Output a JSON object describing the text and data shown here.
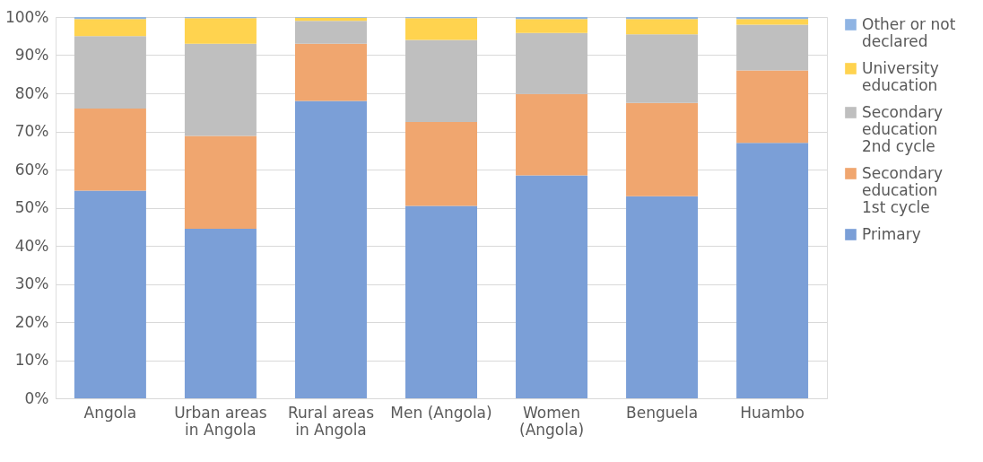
{
  "chart_data": {
    "type": "bar",
    "stacked": true,
    "categories": [
      "Angola",
      "Urban areas in Angola",
      "Rural areas in Angola",
      "Men (Angola)",
      "Women (Angola)",
      "Benguela",
      "Huambo"
    ],
    "series": [
      {
        "name": "Primary",
        "color": "#7b9fd7",
        "values": [
          54.5,
          44.5,
          78,
          50.5,
          58.5,
          53,
          67
        ]
      },
      {
        "name": "Secondary education 1st cycle",
        "color": "#f0a66f",
        "values": [
          21.5,
          24.3,
          15,
          22,
          21.3,
          24.5,
          19
        ]
      },
      {
        "name": "Secondary education 2nd cycle",
        "color": "#bfbfbf",
        "values": [
          19,
          24.2,
          6,
          21.5,
          16,
          18,
          12
        ]
      },
      {
        "name": "University education",
        "color": "#ffd34f",
        "values": [
          4.5,
          6.7,
          0.8,
          5.7,
          3.7,
          4,
          1.5
        ]
      },
      {
        "name": "Other or not declared",
        "color": "#8fb4e3",
        "values": [
          0.5,
          0.3,
          0.2,
          0.3,
          0.5,
          0.5,
          0.5
        ]
      }
    ],
    "ylim": [
      0,
      100
    ],
    "yticks": [
      {
        "value": 0,
        "label": "0%"
      },
      {
        "value": 10,
        "label": "10%"
      },
      {
        "value": 20,
        "label": "20%"
      },
      {
        "value": 30,
        "label": "30%"
      },
      {
        "value": 40,
        "label": "40%"
      },
      {
        "value": 50,
        "label": "50%"
      },
      {
        "value": 60,
        "label": "60%"
      },
      {
        "value": 70,
        "label": "70%"
      },
      {
        "value": 80,
        "label": "80%"
      },
      {
        "value": 90,
        "label": "90%"
      },
      {
        "value": 100,
        "label": "100%"
      }
    ],
    "grid": "y",
    "legend": "right"
  }
}
